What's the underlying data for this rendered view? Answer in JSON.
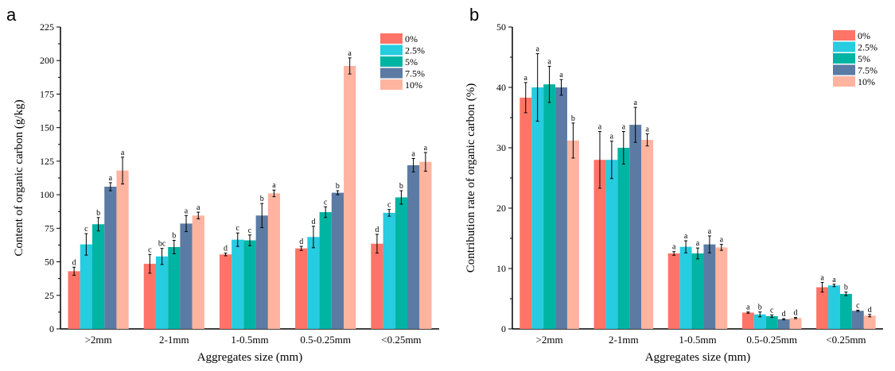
{
  "chart_data": [
    {
      "panel": "a",
      "type": "bar",
      "title": "",
      "xlabel": "Aggregates size (mm)",
      "ylabel": "Content of organic carbon (g/kg)",
      "ylim": [
        0,
        225
      ],
      "yticks": [
        0,
        25,
        50,
        75,
        100,
        125,
        150,
        175,
        200,
        225
      ],
      "legend": "top-right",
      "grid": false,
      "categories": [
        ">2mm",
        "2-1mm",
        "1-0.5mm",
        "0.5-0.25mm",
        "<0.25mm"
      ],
      "series": [
        {
          "name": "0%",
          "color": "#FF7466",
          "values": [
            43,
            48.5,
            55.5,
            60,
            63.5
          ],
          "errors": [
            3,
            7,
            1,
            1.5,
            7
          ],
          "letters": [
            "d",
            "c",
            "d",
            "d",
            "d"
          ]
        },
        {
          "name": "2.5%",
          "color": "#26CCE0",
          "values": [
            63,
            54,
            66.5,
            68.5,
            86.5
          ],
          "errors": [
            8,
            6,
            5,
            8,
            2.5
          ],
          "letters": [
            "c",
            "bc",
            "c",
            "d",
            "c"
          ]
        },
        {
          "name": "5%",
          "color": "#00B4A4",
          "values": [
            78,
            61,
            66,
            87,
            98
          ],
          "errors": [
            5,
            5,
            4,
            4,
            5
          ],
          "letters": [
            "b",
            "b",
            "c",
            "c",
            "b"
          ]
        },
        {
          "name": "7.5%",
          "color": "#5B7BA4",
          "values": [
            106,
            78.5,
            84.5,
            101.5,
            122
          ],
          "errors": [
            3,
            6,
            9,
            1.5,
            5
          ],
          "letters": [
            "a",
            "a",
            "b",
            "b",
            "a"
          ]
        },
        {
          "name": "10%",
          "color": "#FFB4A0",
          "values": [
            118,
            84.5,
            101,
            196,
            124.5
          ],
          "errors": [
            10,
            2.5,
            2.5,
            6,
            7
          ],
          "letters": [
            "a",
            "a",
            "a",
            "a",
            "a"
          ]
        }
      ]
    },
    {
      "panel": "b",
      "type": "bar",
      "title": "",
      "xlabel": "Aggregates size (mm)",
      "ylabel": "Contribution rate of organic carbon (%)",
      "ylim": [
        0,
        50
      ],
      "yticks": [
        0,
        10,
        20,
        30,
        40,
        50
      ],
      "legend": "top-right",
      "grid": false,
      "categories": [
        ">2mm",
        "2-1mm",
        "1-0.5mm",
        "0.5-0.25mm",
        "<0.25mm"
      ],
      "series": [
        {
          "name": "0%",
          "color": "#FF7466",
          "values": [
            38.3,
            28,
            12.5,
            2.7,
            6.9
          ],
          "errors": [
            2.5,
            4.7,
            0.3,
            0.1,
            0.8
          ],
          "letters": [
            "a",
            "a",
            "a",
            "a",
            "a"
          ]
        },
        {
          "name": "2.5%",
          "color": "#26CCE0",
          "values": [
            40,
            28,
            13.6,
            2.4,
            7.2
          ],
          "errors": [
            5.6,
            3.1,
            1,
            0.4,
            0.2
          ],
          "letters": [
            "a",
            "a",
            "a",
            "b",
            "a"
          ]
        },
        {
          "name": "5%",
          "color": "#00B4A4",
          "values": [
            40.5,
            30,
            12.5,
            2.1,
            5.8
          ],
          "errors": [
            3,
            2.7,
            0.9,
            0.2,
            0.3
          ],
          "letters": [
            "a",
            "a",
            "a",
            "c",
            "b"
          ]
        },
        {
          "name": "7.5%",
          "color": "#5B7BA4",
          "values": [
            40,
            33.8,
            14,
            1.6,
            3
          ],
          "errors": [
            1.3,
            2.9,
            1.4,
            0.1,
            0.1
          ],
          "letters": [
            "a",
            "a",
            "a",
            "d",
            "c"
          ]
        },
        {
          "name": "10%",
          "color": "#FFB4A0",
          "values": [
            31.2,
            31.3,
            13.5,
            1.8,
            2.2
          ],
          "errors": [
            2.9,
            1,
            0.5,
            0.1,
            0.2
          ],
          "letters": [
            "b",
            "a",
            "a",
            "d",
            "d"
          ]
        }
      ]
    }
  ]
}
